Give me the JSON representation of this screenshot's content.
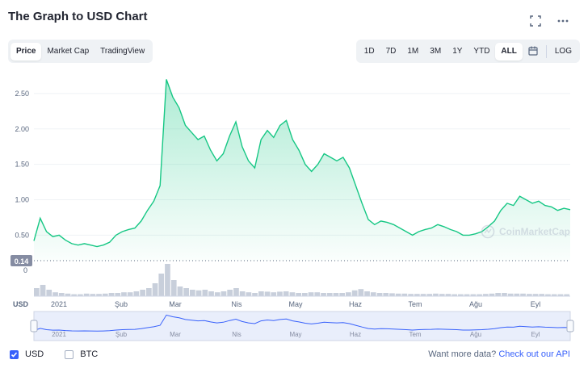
{
  "header": {
    "title": "The Graph to USD Chart"
  },
  "icons": {
    "fullscreen": "fullscreen-icon",
    "more": "more-horizontal-icon",
    "calendar": "calendar-icon"
  },
  "tabs_left": [
    "Price",
    "Market Cap",
    "TradingView"
  ],
  "tabs_left_active": "Price",
  "ranges": [
    "1D",
    "7D",
    "1M",
    "3M",
    "1Y",
    "YTD",
    "ALL"
  ],
  "ranges_active": "ALL",
  "log_label": "LOG",
  "watermark": "CoinMarketCap",
  "currency_axis_label": "USD",
  "colors": {
    "line": "#16c784",
    "accent": "#3861fb",
    "nav_line": "#3861fb"
  },
  "chart_data": {
    "type": "area",
    "y_ticks": [
      "2.50",
      "2.00",
      "1.50",
      "1.00",
      "0.50"
    ],
    "y_range": [
      0.14,
      2.75
    ],
    "current_marker": "0.14",
    "volume_zero": "0",
    "x_labels": [
      "2021",
      "Şub",
      "Mar",
      "Nis",
      "May",
      "Haz",
      "Tem",
      "Ağu",
      "Eyl"
    ],
    "navigator_labels": [
      "2021",
      "Şub",
      "Mar",
      "Nis",
      "May",
      "Haz",
      "Tem",
      "Ağu",
      "Eyl"
    ],
    "series": [
      {
        "values": [
          0.42,
          0.74,
          0.55,
          0.48,
          0.5,
          0.43,
          0.38,
          0.36,
          0.38,
          0.36,
          0.34,
          0.36,
          0.4,
          0.5,
          0.55,
          0.58,
          0.6,
          0.7,
          0.85,
          0.98,
          1.2,
          2.7,
          2.45,
          2.3,
          2.05,
          1.95,
          1.85,
          1.9,
          1.7,
          1.55,
          1.65,
          1.9,
          2.1,
          1.75,
          1.55,
          1.45,
          1.85,
          1.98,
          1.88,
          2.05,
          2.12,
          1.85,
          1.7,
          1.5,
          1.4,
          1.5,
          1.65,
          1.6,
          1.55,
          1.6,
          1.45,
          1.2,
          0.95,
          0.72,
          0.65,
          0.7,
          0.68,
          0.65,
          0.6,
          0.55,
          0.5,
          0.55,
          0.58,
          0.6,
          0.65,
          0.62,
          0.58,
          0.55,
          0.5,
          0.5,
          0.52,
          0.55,
          0.62,
          0.7,
          0.85,
          0.95,
          0.92,
          1.05,
          1.0,
          0.95,
          0.98,
          0.92,
          0.9,
          0.85,
          0.88,
          0.86
        ]
      }
    ],
    "volume": [
      0.25,
      0.35,
      0.2,
      0.12,
      0.1,
      0.08,
      0.06,
      0.06,
      0.08,
      0.07,
      0.07,
      0.08,
      0.1,
      0.1,
      0.12,
      0.12,
      0.15,
      0.2,
      0.25,
      0.4,
      0.7,
      1.0,
      0.5,
      0.3,
      0.25,
      0.2,
      0.18,
      0.2,
      0.15,
      0.12,
      0.15,
      0.2,
      0.25,
      0.15,
      0.12,
      0.1,
      0.15,
      0.14,
      0.12,
      0.14,
      0.15,
      0.12,
      0.1,
      0.1,
      0.12,
      0.12,
      0.1,
      0.1,
      0.1,
      0.1,
      0.12,
      0.18,
      0.22,
      0.15,
      0.12,
      0.1,
      0.1,
      0.09,
      0.08,
      0.08,
      0.07,
      0.07,
      0.07,
      0.07,
      0.08,
      0.07,
      0.07,
      0.06,
      0.06,
      0.06,
      0.06,
      0.06,
      0.07,
      0.08,
      0.1,
      0.1,
      0.08,
      0.08,
      0.08,
      0.07,
      0.07,
      0.07,
      0.06,
      0.06,
      0.06,
      0.06
    ]
  },
  "footer": {
    "usd_label": "USD",
    "btc_label": "BTC",
    "api_text": "Want more data?",
    "api_link": "Check out our API"
  }
}
